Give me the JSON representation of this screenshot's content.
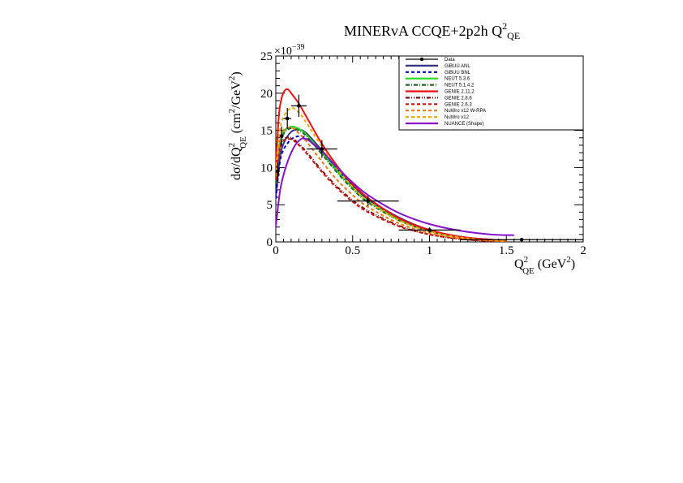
{
  "chart_data": {
    "type": "line",
    "title": "MINERvA CCQE+2p2h Q",
    "title_sup": "2",
    "title_sub": "QE",
    "xlabel": {
      "main": "Q",
      "sup": "2",
      "sub": "QE",
      "unit": "(GeV",
      "unit_sup": "2",
      "unit_end": ")"
    },
    "ylabel": {
      "pre": "dσ/dQ",
      "sup": "2",
      "sub": "QE",
      "unit": "(cm",
      "unit_sup": "2",
      "unit_mid": "/GeV",
      "unit_sup2": "2",
      "unit_end": ")"
    },
    "y_exponent_label": "×10",
    "y_exponent_sup": "−39",
    "xlim": [
      0,
      2
    ],
    "ylim": [
      0,
      25
    ],
    "x_ticks": [
      0,
      0.5,
      1,
      1.5,
      2
    ],
    "x_tick_labels": [
      "0",
      "0.5",
      "1",
      "1.5",
      "2"
    ],
    "y_ticks": [
      0,
      5,
      10,
      15,
      20,
      25
    ],
    "y_tick_labels": [
      "0",
      "5",
      "10",
      "15",
      "20",
      "25"
    ],
    "legend_position": "top-right",
    "data_points": {
      "name": "Data",
      "points": [
        {
          "x": 0.0125,
          "y": 9.5,
          "xerr": 0.0125,
          "yerr": 1.2
        },
        {
          "x": 0.0375,
          "y": 14.2,
          "xerr": 0.0125,
          "yerr": 1.3
        },
        {
          "x": 0.075,
          "y": 16.6,
          "xerr": 0.025,
          "yerr": 1.4
        },
        {
          "x": 0.15,
          "y": 18.3,
          "xerr": 0.05,
          "yerr": 1.5
        },
        {
          "x": 0.3,
          "y": 12.5,
          "xerr": 0.1,
          "yerr": 1.2
        },
        {
          "x": 0.6,
          "y": 5.5,
          "xerr": 0.2,
          "yerr": 0.7
        },
        {
          "x": 1.0,
          "y": 1.6,
          "xerr": 0.2,
          "yerr": 0.35
        },
        {
          "x": 1.6,
          "y": 0.3,
          "xerr": 0.4,
          "yerr": 0.1
        }
      ]
    },
    "series": [
      {
        "name": "GiBUU ANL",
        "color": "#33338a",
        "dash": "solid",
        "width": 2,
        "x": [
          0,
          0.025,
          0.05,
          0.1,
          0.15,
          0.2,
          0.3,
          0.4,
          0.5,
          0.6,
          0.8,
          1.0,
          1.2,
          1.4,
          1.5
        ],
        "y": [
          6.0,
          11.0,
          13.2,
          14.8,
          15.1,
          14.6,
          12.3,
          9.8,
          7.6,
          5.8,
          3.3,
          1.6,
          0.7,
          0.3,
          0.2
        ]
      },
      {
        "name": "GiBUU BNL",
        "color": "#0000cc",
        "dash": "4,3",
        "width": 2,
        "x": [
          0,
          0.025,
          0.05,
          0.1,
          0.15,
          0.2,
          0.3,
          0.4,
          0.5,
          0.6,
          0.8,
          1.0,
          1.2,
          1.4,
          1.5
        ],
        "y": [
          5.8,
          10.5,
          12.4,
          13.8,
          14.2,
          13.9,
          12.0,
          9.6,
          7.4,
          5.6,
          3.2,
          1.6,
          0.7,
          0.3,
          0.2
        ]
      },
      {
        "name": "NEUT 5.3.6",
        "color": "#22dd22",
        "dash": "solid",
        "width": 2,
        "x": [
          0,
          0.025,
          0.05,
          0.1,
          0.15,
          0.2,
          0.3,
          0.4,
          0.5,
          0.6,
          0.8,
          1.0,
          1.2,
          1.4,
          1.5
        ],
        "y": [
          8.0,
          13.0,
          14.8,
          15.5,
          15.2,
          14.4,
          12.0,
          9.5,
          7.3,
          5.5,
          3.0,
          1.5,
          0.6,
          0.2,
          0.1
        ]
      },
      {
        "name": "NEUT 5.1.4.2",
        "color": "#226622",
        "dash": "5,2,1,2",
        "width": 2,
        "x": [
          0,
          0.025,
          0.05,
          0.1,
          0.15,
          0.2,
          0.3,
          0.4,
          0.5,
          0.6,
          0.8,
          1.0,
          1.2,
          1.4,
          1.5
        ],
        "y": [
          7.8,
          12.6,
          14.5,
          15.3,
          15.0,
          14.2,
          11.8,
          9.3,
          7.1,
          5.3,
          2.9,
          1.4,
          0.6,
          0.2,
          0.1
        ]
      },
      {
        "name": "GENIE 2.11.2",
        "color": "#ee1111",
        "dash": "solid",
        "width": 2,
        "x": [
          0,
          0.02,
          0.04,
          0.06,
          0.08,
          0.1,
          0.15,
          0.2,
          0.3,
          0.4,
          0.5,
          0.6,
          0.8,
          1.0,
          1.2,
          1.4,
          1.5
        ],
        "y": [
          10.0,
          17.0,
          19.5,
          20.4,
          20.5,
          20.0,
          18.6,
          16.8,
          13.2,
          10.2,
          7.8,
          5.9,
          3.2,
          1.6,
          0.7,
          0.3,
          0.2
        ]
      },
      {
        "name": "GENIE 2.8.6",
        "color": "#7a1212",
        "dash": "5,2,1,2,1,2",
        "width": 2,
        "x": [
          0,
          0.025,
          0.05,
          0.1,
          0.15,
          0.2,
          0.3,
          0.4,
          0.5,
          0.6,
          0.8,
          1.0,
          1.2,
          1.4,
          1.5
        ],
        "y": [
          8.5,
          12.4,
          13.8,
          14.0,
          13.2,
          12.1,
          9.6,
          7.4,
          5.6,
          4.2,
          2.2,
          1.0,
          0.4,
          0.1,
          0.05
        ]
      },
      {
        "name": "GENIE 2.6.3",
        "color": "#cc1111",
        "dash": "4,3",
        "width": 2,
        "x": [
          0,
          0.025,
          0.05,
          0.1,
          0.15,
          0.2,
          0.3,
          0.4,
          0.5,
          0.6,
          0.8,
          1.0,
          1.2,
          1.4,
          1.5
        ],
        "y": [
          8.3,
          12.2,
          13.6,
          13.8,
          13.0,
          11.9,
          9.4,
          7.2,
          5.4,
          4.0,
          2.1,
          1.0,
          0.4,
          0.1,
          0.05
        ]
      },
      {
        "name": "NuWro v12 W-RPA",
        "color": "#ee7711",
        "dash": "4,3",
        "width": 2,
        "x": [
          0,
          0.025,
          0.05,
          0.1,
          0.15,
          0.2,
          0.3,
          0.4,
          0.5,
          0.6,
          0.8,
          1.0,
          1.2,
          1.4,
          1.5
        ],
        "y": [
          8.8,
          13.4,
          15.0,
          15.4,
          14.6,
          13.5,
          10.8,
          8.3,
          6.3,
          4.7,
          2.5,
          1.2,
          0.5,
          0.2,
          0.1
        ]
      },
      {
        "name": "NuWro v12",
        "color": "#eeaa00",
        "dash": "4,3",
        "width": 2,
        "x": [
          0,
          0.025,
          0.05,
          0.1,
          0.15,
          0.2,
          0.3,
          0.4,
          0.5,
          0.6,
          0.8,
          1.0,
          1.2,
          1.4,
          1.5
        ],
        "y": [
          9.5,
          14.8,
          16.8,
          18.0,
          17.4,
          16.0,
          12.8,
          9.8,
          7.4,
          5.5,
          2.9,
          1.4,
          0.6,
          0.2,
          0.1
        ]
      },
      {
        "name": "NUANCE (Shape)",
        "color": "#8811cc",
        "dash": "solid",
        "width": 2,
        "x": [
          0,
          0.025,
          0.05,
          0.1,
          0.15,
          0.2,
          0.3,
          0.4,
          0.5,
          0.6,
          0.8,
          1.0,
          1.2,
          1.4,
          1.55
        ],
        "y": [
          2.0,
          6.5,
          9.0,
          12.0,
          13.6,
          13.8,
          12.2,
          10.0,
          8.0,
          6.3,
          3.9,
          2.4,
          1.5,
          1.0,
          0.9
        ]
      }
    ]
  }
}
